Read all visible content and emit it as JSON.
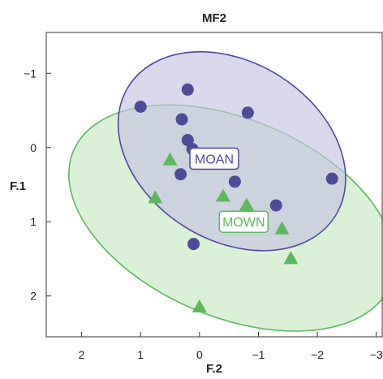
{
  "chart_data": {
    "type": "scatter",
    "title": "MF2",
    "xlabel": "F.2",
    "ylabel": "F.1",
    "xlim": [
      2.6,
      -3.1
    ],
    "ylim": [
      -1.55,
      2.55
    ],
    "x_ticks": [
      "2",
      "1",
      "0",
      "−1",
      "−2",
      "−3"
    ],
    "x_tick_values": [
      2,
      1,
      0,
      -1,
      -2,
      -3
    ],
    "y_ticks": [
      "−1",
      "0",
      "1",
      "2"
    ],
    "y_tick_values": [
      -1,
      0,
      1,
      2
    ],
    "grid": false,
    "series": [
      {
        "name": "MOAN",
        "marker": "circle",
        "color": "#4f4a9a",
        "fill": "#c5c3e2",
        "points": [
          [
            1.0,
            -0.55
          ],
          [
            0.2,
            -0.78
          ],
          [
            -0.82,
            -0.47
          ],
          [
            0.3,
            -0.38
          ],
          [
            0.2,
            -0.1
          ],
          [
            0.12,
            0.02
          ],
          [
            0.32,
            0.36
          ],
          [
            -0.6,
            0.46
          ],
          [
            -1.3,
            0.78
          ],
          [
            -2.25,
            0.42
          ],
          [
            0.1,
            1.3
          ]
        ],
        "ellipse": {
          "cx": -0.55,
          "cy": 0.05,
          "rx": 2.07,
          "ry": 1.2,
          "angle_deg": 32
        }
      },
      {
        "name": "MOWN",
        "marker": "triangle",
        "color": "#5cb85c",
        "fill": "#c8e9c2",
        "points": [
          [
            0.5,
            0.17
          ],
          [
            0.75,
            0.68
          ],
          [
            -0.4,
            0.66
          ],
          [
            -0.8,
            0.78
          ],
          [
            -1.4,
            1.1
          ],
          [
            -1.55,
            1.5
          ],
          [
            0.0,
            2.15
          ]
        ],
        "ellipse": {
          "cx": -0.55,
          "cy": 0.95,
          "rx": 2.92,
          "ry": 1.33,
          "angle_deg": 23
        }
      }
    ],
    "annotations": [
      {
        "text": "MOAN",
        "x": -0.25,
        "y": 0.15,
        "series": 0
      },
      {
        "text": "MOWN",
        "x": -0.75,
        "y": 1.0,
        "series": 1
      }
    ]
  }
}
